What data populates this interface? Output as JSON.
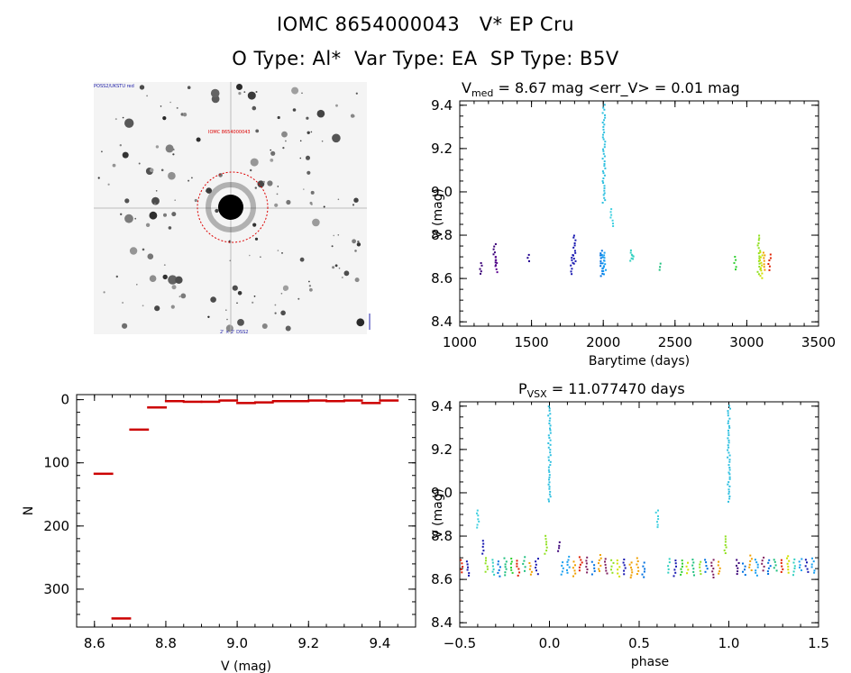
{
  "header": {
    "line1": "IOMC 8654000043   V* EP Cru",
    "line2": "O Type: Al*  Var Type: EA  SP Type: B5V"
  },
  "image_panel": {
    "top_left_label": "POSS2/UKSTU red",
    "bottom_label": "2' × 2' DSS2",
    "source_marker": "IOMC 8654000043"
  },
  "chart_data": [
    {
      "id": "lightcurve",
      "type": "scatter",
      "title_prefix": "V",
      "title_sub": "med",
      "title_suffix": " = 8.67 mag <err_V> = 0.01 mag",
      "xlabel": "Barytime (days)",
      "ylabel": "V (mag)",
      "xlim": [
        1000,
        3500
      ],
      "ylim": [
        9.42,
        8.38
      ],
      "xticks": [
        1000,
        1500,
        2000,
        2500,
        3000,
        3500
      ],
      "xtick_labels": [
        "1000",
        "1500",
        "2000",
        "2500",
        "3000",
        "3500"
      ],
      "yticks": [
        8.4,
        8.6,
        8.8,
        9.0,
        9.2,
        9.4
      ],
      "ytick_labels": [
        "8.4",
        "8.6",
        "8.8",
        "9.0",
        "9.2",
        "9.4"
      ],
      "groups": [
        {
          "x": 1150,
          "ymin": 8.62,
          "ymax": 8.67,
          "color": "#3b0078"
        },
        {
          "x": 1245,
          "ymin": 8.66,
          "ymax": 8.76,
          "color": "#3b0078"
        },
        {
          "x": 1255,
          "ymin": 8.63,
          "ymax": 8.7,
          "color": "#5a0090"
        },
        {
          "x": 1480,
          "ymin": 8.68,
          "ymax": 8.71,
          "color": "#200090"
        },
        {
          "x": 1780,
          "ymin": 8.62,
          "ymax": 8.71,
          "color": "#1818b0"
        },
        {
          "x": 1800,
          "ymin": 8.67,
          "ymax": 8.8,
          "color": "#1818b0"
        },
        {
          "x": 1990,
          "ymin": 8.61,
          "ymax": 8.73,
          "color": "#0070e0"
        },
        {
          "x": 2000,
          "ymin": 8.62,
          "ymax": 8.71,
          "color": "#0090f0"
        },
        {
          "x": 2010,
          "ymin": 8.64,
          "ymax": 8.72,
          "color": "#1aa0f0"
        },
        {
          "x": 2005,
          "ymin": 8.95,
          "ymax": 9.4,
          "color": "#30c0e0"
        },
        {
          "x": 2060,
          "ymin": 8.84,
          "ymax": 8.92,
          "color": "#40d0e0"
        },
        {
          "x": 2195,
          "ymin": 8.68,
          "ymax": 8.73,
          "color": "#30d0c0"
        },
        {
          "x": 2205,
          "ymin": 8.69,
          "ymax": 8.71,
          "color": "#30d0c0"
        },
        {
          "x": 2390,
          "ymin": 8.64,
          "ymax": 8.67,
          "color": "#20c080"
        },
        {
          "x": 2920,
          "ymin": 8.64,
          "ymax": 8.7,
          "color": "#30d030"
        },
        {
          "x": 3085,
          "ymin": 8.62,
          "ymax": 8.8,
          "color": "#90e020"
        },
        {
          "x": 3100,
          "ymin": 8.6,
          "ymax": 8.72,
          "color": "#d0e000"
        },
        {
          "x": 3120,
          "ymin": 8.64,
          "ymax": 8.72,
          "color": "#f0a000"
        },
        {
          "x": 3160,
          "ymin": 8.64,
          "ymax": 8.71,
          "color": "#e02000"
        }
      ]
    },
    {
      "id": "histogram",
      "type": "bar",
      "xlabel": "V (mag)",
      "ylabel": "N",
      "xlim": [
        8.55,
        9.5
      ],
      "ylim": [
        -8,
        360
      ],
      "xticks": [
        8.6,
        8.8,
        9.0,
        9.2,
        9.4
      ],
      "xtick_labels": [
        "8.6",
        "8.8",
        "9.0",
        "9.2",
        "9.4"
      ],
      "yticks": [
        0,
        100,
        200,
        300
      ],
      "ytick_labels": [
        "0",
        "100",
        "200",
        "300"
      ],
      "bin_width": 0.05,
      "bins": [
        8.6,
        8.65,
        8.7,
        8.75,
        8.8,
        8.85,
        8.9,
        8.95,
        9.0,
        9.05,
        9.1,
        9.15,
        9.2,
        9.25,
        9.3,
        9.35,
        9.4
      ],
      "counts": [
        117,
        346,
        47,
        12,
        2,
        3,
        3,
        1,
        5,
        4,
        2,
        2,
        1,
        2,
        1,
        5,
        1
      ],
      "color": "#cc0000"
    },
    {
      "id": "phased",
      "type": "scatter",
      "title_prefix": "P",
      "title_sub": "VSX",
      "title_suffix": " = 11.077470 days",
      "xlabel": "phase",
      "ylabel": "V (mag)",
      "xlim": [
        -0.5,
        1.5
      ],
      "ylim": [
        9.42,
        8.38
      ],
      "xticks": [
        -0.5,
        0.0,
        0.5,
        1.0,
        1.5
      ],
      "xtick_labels": [
        "−0.5",
        "0.0",
        "0.5",
        "1.0",
        "1.5"
      ],
      "yticks": [
        8.4,
        8.6,
        8.8,
        9.0,
        9.2,
        9.4
      ],
      "ytick_labels": [
        "8.4",
        "8.6",
        "8.8",
        "9.0",
        "9.2",
        "9.4"
      ],
      "colors": [
        "#3b0078",
        "#1818b0",
        "#0070e0",
        "#1aa0f0",
        "#30d0c0",
        "#20c080",
        "#30d030",
        "#90e020",
        "#d0e000",
        "#f0a000",
        "#e02000",
        "#802060"
      ],
      "eclipses": [
        {
          "x": 0.0,
          "ymin": 8.96,
          "ymax": 9.4,
          "color": "#30c0e0"
        },
        {
          "x": 1.0,
          "ymin": 8.96,
          "ymax": 9.4,
          "color": "#30c0e0"
        },
        {
          "x": -0.4,
          "ymin": 8.84,
          "ymax": 8.92,
          "color": "#40d0e0"
        },
        {
          "x": 0.6,
          "ymin": 8.84,
          "ymax": 8.92,
          "color": "#40d0e0"
        },
        {
          "x": -0.37,
          "ymin": 8.72,
          "ymax": 8.78,
          "color": "#1818b0"
        },
        {
          "x": 0.05,
          "ymin": 8.73,
          "ymax": 8.77,
          "color": "#3b0078"
        },
        {
          "x": -0.02,
          "ymin": 8.72,
          "ymax": 8.8,
          "color": "#90e020"
        },
        {
          "x": 0.98,
          "ymin": 8.72,
          "ymax": 8.8,
          "color": "#90e020"
        }
      ]
    }
  ]
}
